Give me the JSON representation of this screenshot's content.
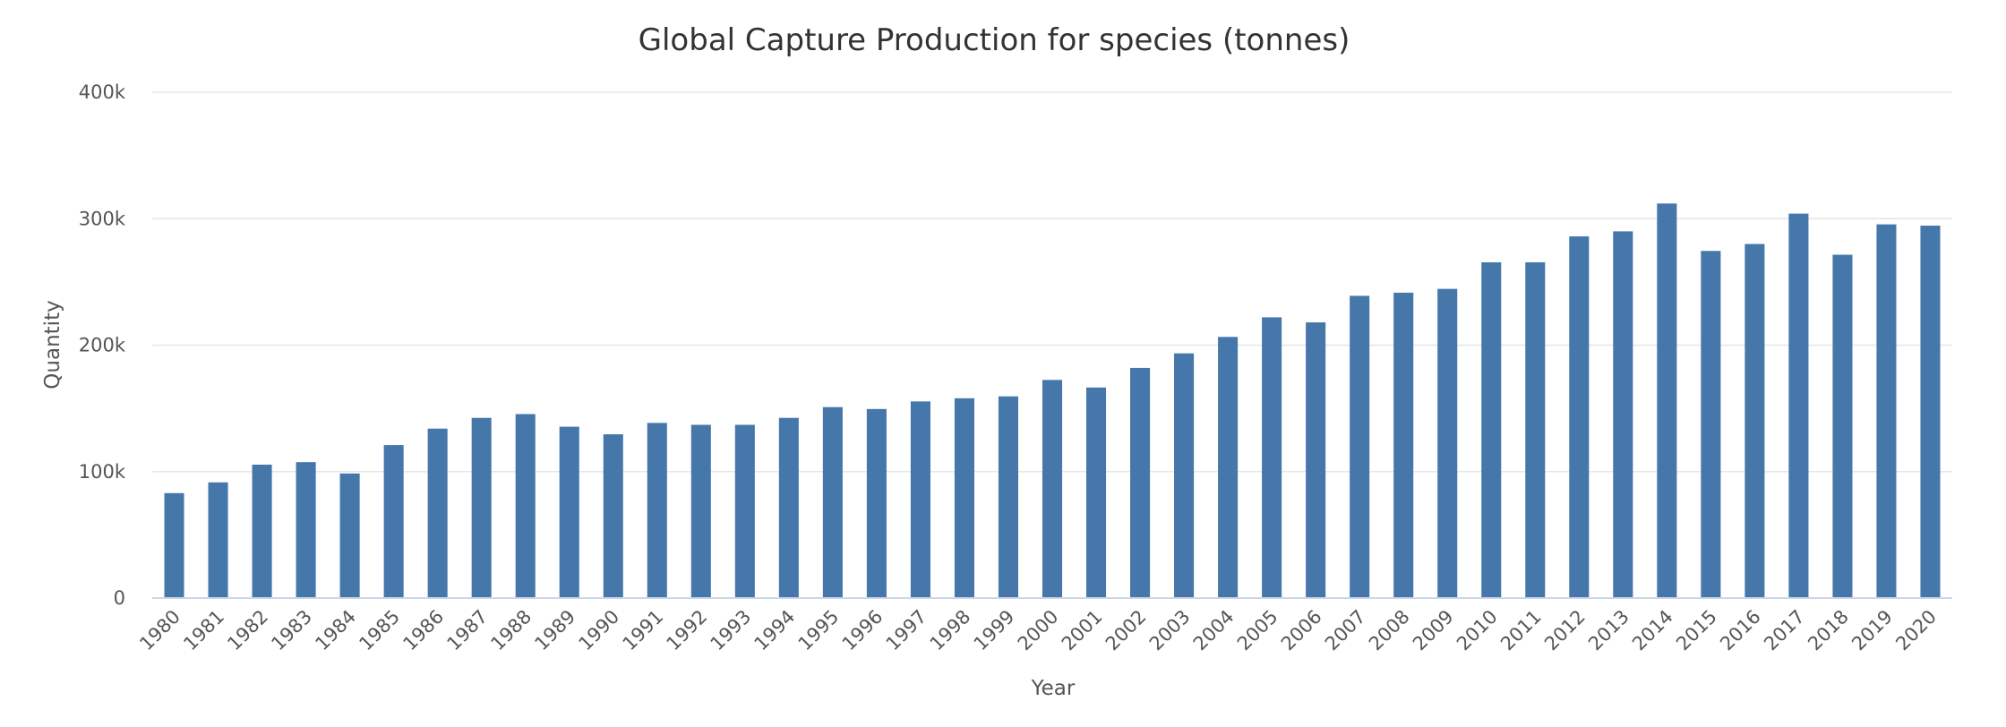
{
  "chart_data": {
    "type": "bar",
    "title": "Global Capture Production for species (tonnes)",
    "xlabel": "Year",
    "ylabel": "Quantity",
    "ylim": [
      0,
      400000
    ],
    "yticks": [
      {
        "value": 0,
        "label": "0"
      },
      {
        "value": 100000,
        "label": "100k"
      },
      {
        "value": 200000,
        "label": "200k"
      },
      {
        "value": 300000,
        "label": "300k"
      },
      {
        "value": 400000,
        "label": "400k"
      }
    ],
    "grid": true,
    "bar_color": "#4677ab",
    "categories": [
      "1980",
      "1981",
      "1982",
      "1983",
      "1984",
      "1985",
      "1986",
      "1987",
      "1988",
      "1989",
      "1990",
      "1991",
      "1992",
      "1993",
      "1994",
      "1995",
      "1996",
      "1997",
      "1998",
      "1999",
      "2000",
      "2001",
      "2002",
      "2003",
      "2004",
      "2005",
      "2006",
      "2007",
      "2008",
      "2009",
      "2010",
      "2011",
      "2012",
      "2013",
      "2014",
      "2015",
      "2016",
      "2017",
      "2018",
      "2019",
      "2020"
    ],
    "values": [
      83000,
      91500,
      105500,
      107500,
      98500,
      121000,
      134000,
      142500,
      145500,
      135500,
      129500,
      138500,
      137000,
      137000,
      142500,
      151000,
      149500,
      155500,
      158000,
      159500,
      172500,
      166500,
      182000,
      193500,
      206500,
      222000,
      218000,
      239000,
      241500,
      244500,
      265500,
      265500,
      286000,
      290000,
      312000,
      274500,
      280000,
      304000,
      271500,
      295500,
      294500
    ]
  }
}
